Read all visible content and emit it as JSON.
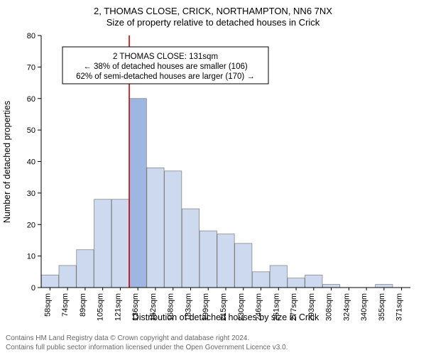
{
  "title_line1": "2, THOMAS CLOSE, CRICK, NORTHAMPTON, NN6 7NX",
  "title_line2": "Size of property relative to detached houses in Crick",
  "y_axis_label": "Number of detached properties",
  "x_axis_label": "Distribution of detached houses by size in Crick",
  "footer_line1": "Contains HM Land Registry data © Crown copyright and database right 2024.",
  "footer_line2": "Contains full public sector information licensed under the Open Government Licence v3.0.",
  "chart": {
    "type": "histogram",
    "background_color": "#ffffff",
    "bar_fill": "#cdd9ef",
    "bar_stroke": "#7a7a7a",
    "highlight_fill": "#9db6e2",
    "highlight_line_color": "#d40000",
    "highlight_index": 5,
    "ylim": [
      0,
      80
    ],
    "ytick_step": 10,
    "x_categories": [
      "58sqm",
      "74sqm",
      "89sqm",
      "105sqm",
      "121sqm",
      "136sqm",
      "152sqm",
      "168sqm",
      "183sqm",
      "199sqm",
      "215sqm",
      "230sqm",
      "246sqm",
      "261sqm",
      "277sqm",
      "293sqm",
      "308sqm",
      "324sqm",
      "340sqm",
      "355sqm",
      "371sqm"
    ],
    "values": [
      4,
      7,
      12,
      28,
      28,
      60,
      38,
      37,
      25,
      18,
      17,
      14,
      5,
      7,
      3,
      4,
      1,
      0,
      0,
      1,
      0
    ],
    "bar_width_ratio": 0.98,
    "title_fontsize": 13,
    "axis_label_fontsize": 12.5,
    "tick_fontsize": 11,
    "annotation": {
      "lines": [
        "2 THOMAS CLOSE: 131sqm",
        "← 38% of detached houses are smaller (106)",
        "62% of semi-detached houses are larger (170) →"
      ],
      "box_stroke": "#000000",
      "box_fill": "#ffffff",
      "font_size": 11.5
    }
  }
}
